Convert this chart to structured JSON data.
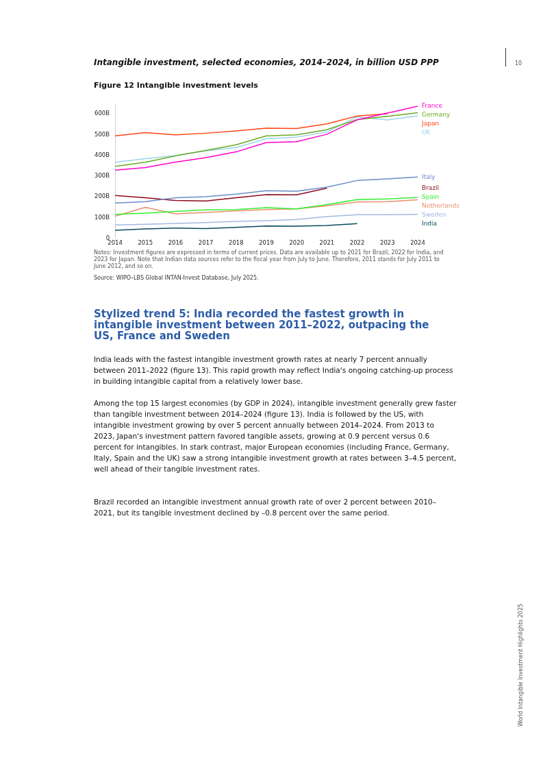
{
  "chart_data": {
    "type": "line",
    "title": "Figure 12 Intangible investment levels",
    "subtitle": "Intangible investment, selected economies, 2014–2024, in billion USD PPP",
    "x": [
      2014,
      2015,
      2016,
      2017,
      2018,
      2019,
      2020,
      2021,
      2022,
      2023,
      2024
    ],
    "xlim": [
      2014,
      2024
    ],
    "xticks": [
      2014,
      2015,
      2016,
      2017,
      2018,
      2019,
      2020,
      2021,
      2022,
      2023,
      2024
    ],
    "ylim": [
      0,
      650
    ],
    "yticks": [
      0,
      {
        "value": 100,
        "label": "100B"
      },
      {
        "value": 200,
        "label": "200B"
      },
      {
        "value": 300,
        "label": "300B"
      },
      {
        "value": 400,
        "label": "400B"
      },
      {
        "value": 500,
        "label": "500B"
      },
      {
        "value": 600,
        "label": "600B"
      }
    ],
    "grid": false,
    "legend": false,
    "marker": "none",
    "line_style": "solid",
    "series": [
      {
        "name": "France",
        "color": "#ff00cc",
        "values": [
          329,
          341,
          368,
          389,
          417,
          462,
          466,
          502,
          572,
          604,
          637
        ]
      },
      {
        "name": "Germany",
        "color": "#66aa22",
        "values": [
          347,
          367,
          398,
          424,
          451,
          494,
          499,
          524,
          573,
          588,
          606
        ]
      },
      {
        "name": "Japan",
        "color": "#ff4411",
        "values": [
          494,
          510,
          499,
          507,
          518,
          531,
          530,
          552,
          590,
          601,
          null
        ]
      },
      {
        "name": "UK",
        "color": "#99d4e8",
        "values": [
          367,
          384,
          399,
          422,
          438,
          480,
          488,
          513,
          586,
          571,
          591
        ]
      },
      {
        "name": "Italy",
        "color": "#6c8cc8",
        "values": [
          170,
          177,
          196,
          201,
          213,
          230,
          227,
          247,
          279,
          287,
          296
        ]
      },
      {
        "name": "Brazil",
        "color": "#8b0a1a",
        "values": [
          207,
          196,
          183,
          180,
          196,
          211,
          210,
          242,
          null,
          null,
          null
        ]
      },
      {
        "name": "Spain",
        "color": "#33ee33",
        "values": [
          116,
          122,
          130,
          137,
          139,
          148,
          142,
          163,
          187,
          190,
          198
        ]
      },
      {
        "name": "Netherlands",
        "color": "#e8906a",
        "values": [
          107,
          150,
          118,
          125,
          132,
          139,
          142,
          157,
          175,
          177,
          186
        ]
      },
      {
        "name": "Sweden",
        "color": "#a4b8e0",
        "values": [
          65,
          68,
          72,
          76,
          82,
          85,
          91,
          105,
          114,
          114,
          116
        ]
      },
      {
        "name": "India",
        "color": "#0a4a5c",
        "values": [
          39,
          46,
          50,
          47,
          53,
          60,
          59,
          62,
          71,
          null,
          null
        ]
      }
    ],
    "annotations": [
      "Notes: Investment figures are expressed in terms of current prices. Data are available up to 2021 for Brazil, 2022 for India, and 2023 for Japan. Note that Indian data sources refer to the fiscal year from July to June. Therefore, 2011 stands for July 2011 to June 2012, and so on.",
      "Source: WIPO–LBS Global INTAN-Invest Database, July 2025.",
      "10",
      "Stylized trend 5: India recorded the fastest growth in intangible investment between 2011–2022, outpacing the US, France and Sweden",
      "India leads with the fastest intangible investment growth rates at nearly 7 percent annually between 2011–2022 (figure 13). This rapid growth may reflect India's ongoing catching-up process in building intangible capital from a relatively lower base.",
      "Among the top 15 largest economies (by GDP in 2024), intangible investment generally grew faster than tangible investment between 2014–2024 (figure 13). India is followed by the US, with intangible investment growing by over 5 percent annually between 2014–2024. From 2013 to 2023, Japan's investment pattern favored tangible assets, growing at 0.9 percent versus 0.6 percent for intangibles. In stark contrast, major European economies (including France, Germany, Italy, Spain and the UK) saw a strong intangible investment growth at rates between 3–4.5 percent, well ahead of their tangible investment rates.",
      "Brazil recorded an intangible investment annual growth rate of over 2 percent between 2010–2021, but its tangible investment declined by –0.8 percent over the same period.",
      "World Intangible Investment Highlights 2025"
    ]
  }
}
